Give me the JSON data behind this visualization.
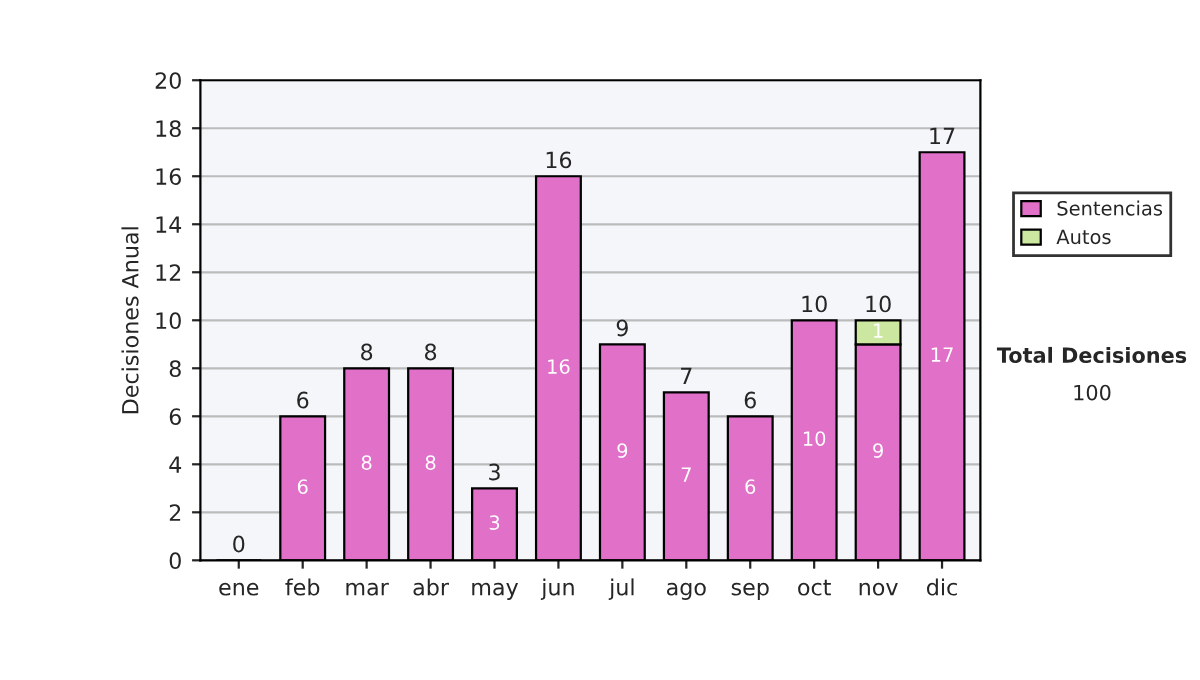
{
  "chart_data": {
    "type": "bar",
    "stacked": true,
    "ylabel": "Decisiones Anual",
    "categories": [
      "ene",
      "feb",
      "mar",
      "abr",
      "may",
      "jun",
      "jul",
      "ago",
      "sep",
      "oct",
      "nov",
      "dic"
    ],
    "series": [
      {
        "name": "Sentencias",
        "color": "#e070c8",
        "values": [
          0,
          6,
          8,
          8,
          3,
          16,
          9,
          7,
          6,
          10,
          9,
          17
        ],
        "value_labels": [
          null,
          "6",
          "8",
          "8",
          "3",
          "16",
          "9",
          "7",
          "6",
          "10",
          "9",
          "17"
        ]
      },
      {
        "name": "Autos",
        "color": "#cce8a0",
        "values": [
          null,
          null,
          null,
          null,
          null,
          null,
          null,
          null,
          null,
          null,
          1,
          null
        ],
        "value_labels": [
          null,
          null,
          null,
          null,
          null,
          null,
          null,
          null,
          null,
          null,
          "1",
          null
        ]
      }
    ],
    "totals": [
      "0",
      "6",
      "8",
      "8",
      "3",
      "16",
      "9",
      "7",
      "6",
      "10",
      "10",
      "17"
    ],
    "ylim": [
      0,
      20
    ],
    "yticks": [
      0,
      2,
      4,
      6,
      8,
      10,
      12,
      14,
      16,
      18,
      20
    ],
    "grid": "y",
    "legend": "right",
    "annotations": [
      "Total Decisiones",
      "100"
    ]
  }
}
